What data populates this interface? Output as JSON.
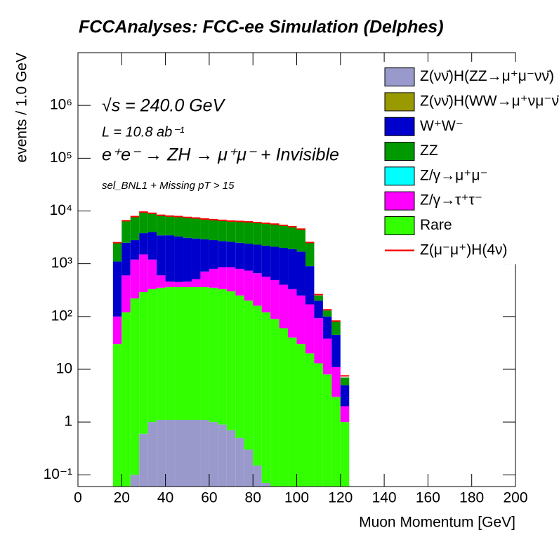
{
  "chart_data": {
    "type": "stacked_histogram",
    "title": "FCCAnalyses: FCC-ee Simulation (Delphes)",
    "annotations": [
      "√s = 240.0 GeV",
      "L = 10.8 ab⁻¹",
      "e⁺e⁻ → ZH → μ⁺μ⁻ + Invisible",
      "sel_BNL1 + Missing pT > 15"
    ],
    "xlabel": "Muon Momentum [GeV]",
    "ylabel": "events / 1.0 GeV",
    "log_y": true,
    "legend": "upper right",
    "bins": [
      16,
      20,
      24,
      28,
      32,
      36,
      40,
      44,
      48,
      52,
      56,
      60,
      64,
      68,
      72,
      76,
      80,
      84,
      88,
      92,
      96,
      100,
      104,
      108,
      112,
      116,
      120,
      124
    ],
    "series": [
      {
        "name": "Z(νν̄)H(ZZ→μ⁺μ⁻νν̄)",
        "color": "#9999cc",
        "values": [
          0,
          0,
          0.1,
          0.6,
          1.0,
          1.1,
          1.1,
          1.1,
          1.1,
          1.1,
          1.1,
          1.0,
          0.9,
          0.7,
          0.5,
          0.3,
          0.15,
          0.07,
          0,
          0,
          0,
          0,
          0,
          0,
          0,
          0,
          0
        ]
      },
      {
        "name": "Z(νν̄)H(WW→μ⁺νμ⁻ν̄)",
        "color": "#999900",
        "values": [
          0,
          0,
          0,
          0,
          0,
          0,
          0,
          0,
          0,
          0,
          0,
          0,
          0,
          0,
          0,
          0,
          0,
          0,
          0,
          0,
          0,
          0,
          0,
          0,
          0,
          0,
          0
        ]
      },
      {
        "name": "W⁺W⁻",
        "color": "#0000cc",
        "values": [
          1000,
          1900,
          1600,
          2300,
          2800,
          2850,
          3000,
          2850,
          2640,
          2500,
          2200,
          2000,
          1840,
          1740,
          1700,
          1660,
          1640,
          1630,
          1610,
          1600,
          1570,
          1450,
          730,
          107,
          62,
          34,
          3
        ]
      },
      {
        "name": "ZZ",
        "color": "#009900",
        "values": [
          1400,
          4000,
          5000,
          5700,
          5000,
          4800,
          4500,
          4500,
          4400,
          4300,
          4100,
          4000,
          3900,
          3800,
          3800,
          3800,
          3700,
          3600,
          3500,
          3300,
          3100,
          2800,
          1600,
          50,
          30,
          35,
          2
        ]
      },
      {
        "name": "Z/γ→μ⁺μ⁻",
        "color": "#00ffff",
        "values": [
          0,
          0,
          0,
          0,
          0,
          0,
          0,
          0,
          0,
          0,
          0,
          0,
          0,
          0,
          0,
          0,
          0,
          0,
          0,
          0,
          0,
          0,
          0,
          0,
          0,
          0,
          0
        ]
      },
      {
        "name": "Z/γ→τ⁺τ⁻",
        "color": "#ff00ff",
        "values": [
          70,
          480,
          980,
          1210,
          870,
          250,
          100,
          90,
          100,
          150,
          350,
          450,
          530,
          560,
          550,
          540,
          500,
          450,
          400,
          340,
          290,
          220,
          150,
          80,
          30,
          8,
          1
        ]
      },
      {
        "name": "Rare",
        "color": "#33ff00",
        "values": [
          30,
          120,
          220,
          290,
          330,
          350,
          360,
          360,
          360,
          360,
          360,
          350,
          330,
          300,
          250,
          200,
          160,
          120,
          90,
          60,
          40,
          30,
          20,
          13,
          8,
          3,
          1
        ]
      },
      {
        "name": "Z(μ⁻μ⁺)H(4ν)",
        "color": "#ff0000",
        "values": [
          5,
          20,
          30,
          35,
          40,
          40,
          40,
          40,
          40,
          40,
          40,
          40,
          40,
          40,
          40,
          40,
          40,
          40,
          40,
          40,
          40,
          35,
          25,
          10,
          4,
          2,
          0.5
        ]
      }
    ],
    "xlim": [
      0,
      200
    ],
    "xticks": [
      0,
      20,
      40,
      60,
      80,
      100,
      120,
      140,
      160,
      180,
      200
    ],
    "ylim": [
      0.06,
      10000000
    ],
    "yticks": [
      {
        "value": 0.1,
        "label": "10⁻¹"
      },
      1,
      10,
      {
        "value": 100,
        "label": "10²"
      },
      {
        "value": 1000,
        "label": "10³"
      },
      {
        "value": 10000,
        "label": "10⁴"
      },
      {
        "value": 100000,
        "label": "10⁵"
      },
      {
        "value": 1000000,
        "label": "10⁶"
      }
    ]
  }
}
